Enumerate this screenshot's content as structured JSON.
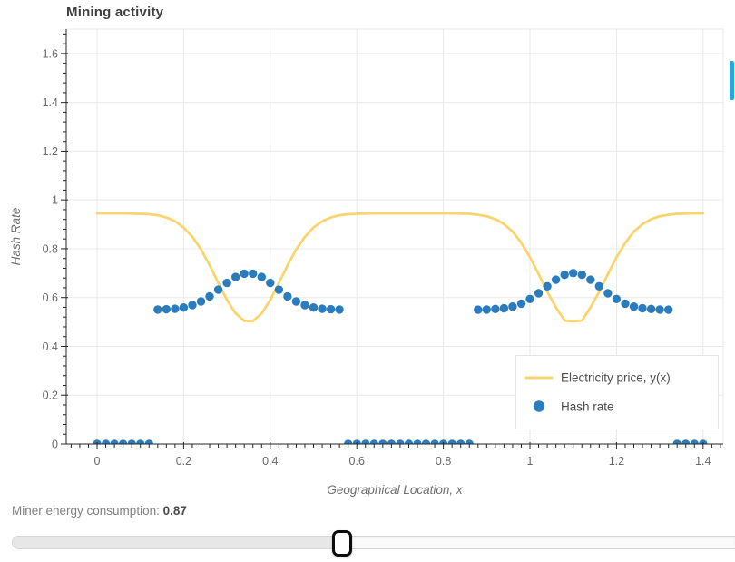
{
  "figure": {
    "title": "Mining activity",
    "x_axis": {
      "label": "Geographical Location, x",
      "ticks": [
        0,
        0.2,
        0.4,
        0.6,
        0.8,
        1,
        1.2,
        1.4
      ],
      "tick_labels": [
        "0",
        "0.2",
        "0.4",
        "0.6",
        "0.8",
        "1",
        "1.2",
        "1.4"
      ],
      "minor_start": -0.06,
      "minor_step": 0.02,
      "minor_end": 1.44
    },
    "y_axis": {
      "label": "Hash Rate",
      "ticks": [
        0,
        0.2,
        0.4,
        0.6,
        0.8,
        1,
        1.2,
        1.4,
        1.6
      ],
      "tick_labels": [
        "0",
        "0.2",
        "0.4",
        "0.6",
        "0.8",
        "1",
        "1.2",
        "1.4",
        "1.6"
      ],
      "minor_start": 0.04,
      "minor_step": 0.04,
      "minor_end": 1.68
    }
  },
  "chart_data": {
    "type": "line+scatter",
    "title": "Mining activity",
    "xlabel": "Geographical Location, x",
    "ylabel": "Hash Rate",
    "xlim": [
      -0.0713,
      1.4465
    ],
    "ylim": [
      0,
      1.7
    ],
    "grid": true,
    "legend_position": "bottom-right",
    "x": [
      0,
      0.02,
      0.04,
      0.06,
      0.08,
      0.1,
      0.12,
      0.14,
      0.16,
      0.18,
      0.2,
      0.22,
      0.24,
      0.26,
      0.28,
      0.3,
      0.32,
      0.34,
      0.36,
      0.38,
      0.4,
      0.42,
      0.44,
      0.46,
      0.48,
      0.5,
      0.52,
      0.54,
      0.56,
      0.58,
      0.6,
      0.62,
      0.64,
      0.66,
      0.68,
      0.7,
      0.72,
      0.74,
      0.76,
      0.78,
      0.8,
      0.82,
      0.84,
      0.86,
      0.88,
      0.9,
      0.92,
      0.94,
      0.96,
      0.98,
      1,
      1.02,
      1.04,
      1.06,
      1.08,
      1.1,
      1.12,
      1.14,
      1.16,
      1.18,
      1.2,
      1.22,
      1.24,
      1.26,
      1.28,
      1.3,
      1.32,
      1.34,
      1.36,
      1.38,
      1.4
    ],
    "series": [
      {
        "name": "Electricity price, y(x)",
        "type": "line",
        "color": "#fbd46d",
        "line_width": 2.8,
        "values": [
          0.945,
          0.945,
          0.945,
          0.945,
          0.944,
          0.943,
          0.941,
          0.937,
          0.928,
          0.913,
          0.887,
          0.849,
          0.797,
          0.732,
          0.66,
          0.59,
          0.535,
          0.504,
          0.504,
          0.535,
          0.59,
          0.66,
          0.732,
          0.797,
          0.849,
          0.887,
          0.913,
          0.928,
          0.937,
          0.941,
          0.943,
          0.944,
          0.945,
          0.945,
          0.945,
          0.945,
          0.945,
          0.945,
          0.945,
          0.945,
          0.945,
          0.945,
          0.944,
          0.943,
          0.939,
          0.933,
          0.921,
          0.901,
          0.87,
          0.824,
          0.765,
          0.696,
          0.624,
          0.56,
          0.506,
          0.503,
          0.506,
          0.56,
          0.624,
          0.696,
          0.765,
          0.824,
          0.87,
          0.901,
          0.921,
          0.933,
          0.939,
          0.943,
          0.944,
          0.945,
          0.945
        ]
      },
      {
        "name": "Hash rate",
        "type": "scatter",
        "color": "#2b7cbd",
        "marker_radius": 4.7,
        "values": [
          0,
          0,
          0,
          0,
          0,
          0,
          0,
          0.551,
          0.552,
          0.554,
          0.559,
          0.569,
          0.584,
          0.605,
          0.632,
          0.66,
          0.684,
          0.698,
          0.698,
          0.684,
          0.66,
          0.632,
          0.605,
          0.584,
          0.569,
          0.559,
          0.554,
          0.552,
          0.551,
          0,
          0,
          0,
          0,
          0,
          0,
          0,
          0,
          0,
          0,
          0,
          0,
          0,
          0,
          0,
          0.55,
          0.551,
          0.553,
          0.556,
          0.563,
          0.575,
          0.594,
          0.618,
          0.646,
          0.673,
          0.693,
          0.7,
          0.693,
          0.673,
          0.646,
          0.618,
          0.594,
          0.575,
          0.563,
          0.556,
          0.553,
          0.551,
          0.55,
          0,
          0,
          0,
          0
        ]
      }
    ],
    "legend": {
      "entries": [
        {
          "label": "Electricity price, y(x)",
          "marker": "line"
        },
        {
          "label": "Hash rate",
          "marker": "circle"
        }
      ]
    }
  },
  "slider": {
    "label": "Miner energy consumption: ",
    "value": "0.87"
  },
  "colors": {
    "line": "#fbd46d",
    "scatter": "#2b7cbd",
    "accent_bar": "#2aa6dc",
    "grid": "#e9e9e9",
    "axis": "#262626",
    "tick_label": "#686868",
    "axis_label": "#6e6e6e",
    "legend_text": "#4d4d4d"
  }
}
